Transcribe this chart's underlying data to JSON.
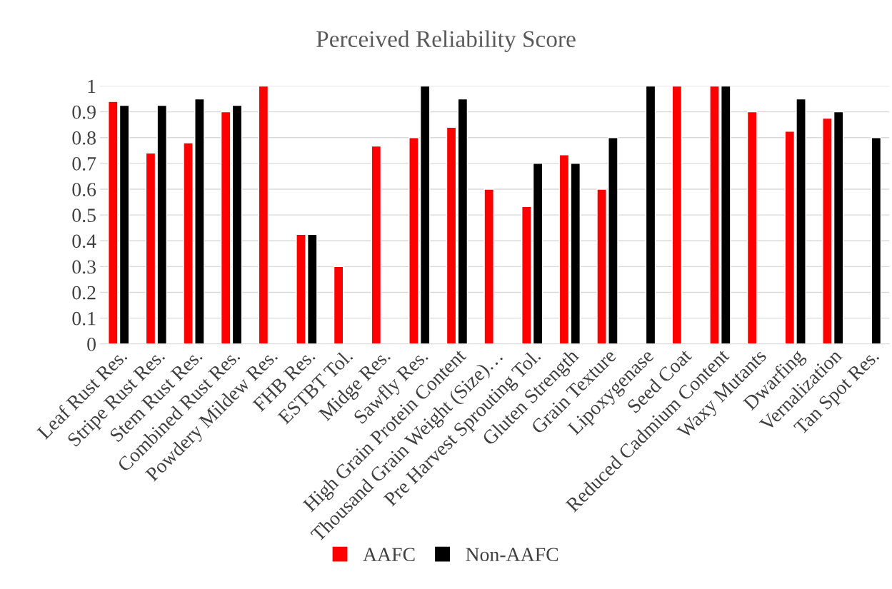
{
  "chart_data": {
    "type": "bar",
    "title": "Perceived Reliability Score",
    "categories": [
      "Leaf Rust Res.",
      "Stripe Rust Res.",
      "Stem Rust Res.",
      "Combined Rust Res.",
      "Powdery Mildew Res.",
      "FHB Res.",
      "ESTBT Tol.",
      "Midge Res.",
      "Sawfly Res.",
      "High Grain Protein Content",
      "Thousand Grain Weight (Size)…",
      "Pre Harvest Sprouting Tol.",
      "Gluten Strength",
      "Grain Texture",
      "Lipoxygenase",
      "Seed Coat",
      "Reduced Cadmium Content",
      "Waxy Mutants",
      "Dwarfing",
      "Vernalization",
      "Tan Spot Res."
    ],
    "series": [
      {
        "name": "AAFC",
        "color": "#ff0000",
        "values": [
          0.94,
          0.74,
          0.78,
          0.9,
          1,
          0.425,
          0.3,
          0.767,
          0.8,
          0.84,
          0.6,
          0.533,
          0.733,
          0.6,
          null,
          1,
          1,
          0.9,
          0.825,
          0.875,
          null
        ]
      },
      {
        "name": "Non-AAFC",
        "color": "#000000",
        "values": [
          0.925,
          0.925,
          0.95,
          0.925,
          null,
          0.425,
          null,
          null,
          1,
          0.95,
          null,
          0.7,
          0.7,
          0.8,
          1,
          null,
          1,
          null,
          0.95,
          0.9,
          0.8
        ]
      }
    ],
    "ylim": [
      0,
      1
    ],
    "yticks": [
      0,
      0.1,
      0.2,
      0.3,
      0.4,
      0.5,
      0.6,
      0.7,
      0.8,
      0.9,
      1
    ],
    "grid": "y",
    "legend": "bottom"
  }
}
